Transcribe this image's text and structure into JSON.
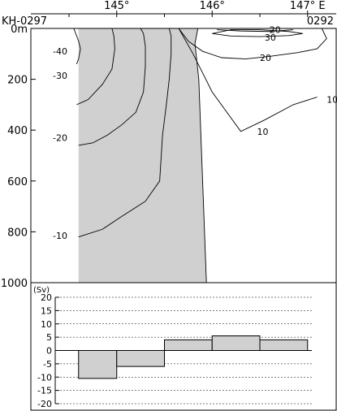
{
  "chart_data": [
    {
      "type": "contour",
      "section_start": "KH-0297",
      "section_end": "0292",
      "x_unit": "E",
      "x_ticks": [
        {
          "value": 145,
          "label": "145°"
        },
        {
          "value": 146,
          "label": "146°"
        },
        {
          "value": 147,
          "label": "147° E"
        }
      ],
      "xlim": [
        144.1,
        147.3
      ],
      "y_ticks": [
        {
          "value": 0,
          "label": "0m"
        },
        {
          "value": 200,
          "label": "200"
        },
        {
          "value": 400,
          "label": "400"
        },
        {
          "value": 600,
          "label": "600"
        },
        {
          "value": 800,
          "label": "800"
        },
        {
          "value": 1000,
          "label": "1000"
        }
      ],
      "ylim": [
        0,
        1000
      ],
      "negative_region_shaded": true,
      "contours": [
        {
          "level": -40,
          "label": "-40",
          "points": [
            [
              144.55,
              0
            ],
            [
              144.6,
              50
            ],
            [
              144.62,
              80
            ],
            [
              144.6,
              120
            ],
            [
              144.58,
              140
            ]
          ]
        },
        {
          "level": -30,
          "label": "-30",
          "points": [
            [
              144.95,
              0
            ],
            [
              144.97,
              30
            ],
            [
              144.98,
              80
            ],
            [
              144.95,
              160
            ],
            [
              144.85,
              220
            ],
            [
              144.7,
              280
            ],
            [
              144.58,
              300
            ]
          ]
        },
        {
          "level": -20,
          "label": "-20",
          "points": [
            [
              145.25,
              0
            ],
            [
              145.28,
              20
            ],
            [
              145.3,
              70
            ],
            [
              145.3,
              150
            ],
            [
              145.28,
              250
            ],
            [
              145.2,
              330
            ],
            [
              145.05,
              380
            ],
            [
              144.9,
              420
            ],
            [
              144.75,
              450
            ],
            [
              144.6,
              460
            ]
          ]
        },
        {
          "level": -10,
          "label": "-10",
          "points": [
            [
              145.55,
              0
            ],
            [
              145.57,
              30
            ],
            [
              145.57,
              100
            ],
            [
              145.55,
              200
            ],
            [
              145.52,
              300
            ],
            [
              145.48,
              420
            ],
            [
              145.45,
              600
            ],
            [
              145.3,
              680
            ],
            [
              145.05,
              740
            ],
            [
              144.85,
              790
            ],
            [
              144.6,
              820
            ]
          ]
        },
        {
          "level": 0,
          "label": "",
          "points": [
            [
              145.85,
              0
            ],
            [
              145.82,
              60
            ],
            [
              145.86,
              200
            ],
            [
              145.88,
              400
            ],
            [
              145.9,
              600
            ],
            [
              145.92,
              800
            ],
            [
              145.94,
              1000
            ]
          ]
        },
        {
          "level": 20,
          "label": "20",
          "points": [
            [
              145.65,
              0
            ],
            [
              145.75,
              50
            ],
            [
              145.9,
              90
            ],
            [
              146.1,
              115
            ],
            [
              146.35,
              120
            ],
            [
              146.6,
              110
            ],
            [
              146.9,
              95
            ],
            [
              147.1,
              80
            ],
            [
              147.2,
              40
            ],
            [
              147.15,
              0
            ]
          ]
        },
        {
          "level": 20,
          "label": "20",
          "points": [
            [
              146.0,
              20
            ],
            [
              146.2,
              5
            ],
            [
              146.5,
              5
            ],
            [
              146.8,
              12
            ],
            [
              146.95,
              20
            ],
            [
              146.8,
              28
            ],
            [
              146.5,
              32
            ],
            [
              146.2,
              30
            ],
            [
              146.0,
              20
            ]
          ]
        },
        {
          "level": 30,
          "label": "30",
          "points": [
            [
              146.05,
              5
            ],
            [
              146.3,
              10
            ],
            [
              146.6,
              12
            ],
            [
              146.85,
              5
            ]
          ]
        },
        {
          "level": 10,
          "label": "10",
          "points": [
            [
              145.65,
              0
            ],
            [
              145.8,
              100
            ],
            [
              146.0,
              250
            ],
            [
              146.3,
              405
            ],
            [
              146.55,
              360
            ],
            [
              146.85,
              300
            ],
            [
              147.1,
              270
            ]
          ]
        }
      ],
      "contour_labels": [
        {
          "text": "-40",
          "x": 144.33,
          "y": 90
        },
        {
          "text": "-30",
          "x": 144.33,
          "y": 185
        },
        {
          "text": "-20",
          "x": 144.33,
          "y": 430
        },
        {
          "text": "-10",
          "x": 144.33,
          "y": 815
        },
        {
          "text": "20",
          "x": 146.6,
          "y": 5
        },
        {
          "text": "30",
          "x": 146.55,
          "y": 35
        },
        {
          "text": "20",
          "x": 146.5,
          "y": 115
        },
        {
          "text": "10",
          "x": 147.2,
          "y": 280
        },
        {
          "text": "10",
          "x": 146.47,
          "y": 405
        }
      ]
    },
    {
      "type": "bar",
      "ylabel": "(Sv)",
      "ylim": [
        -20,
        20
      ],
      "y_ticks": [
        20,
        15,
        10,
        5,
        0,
        -5,
        -10,
        -15,
        -20
      ],
      "grid": true,
      "bars": [
        {
          "x0": 144.6,
          "x1": 145.0,
          "value": -10.5
        },
        {
          "x0": 145.0,
          "x1": 145.5,
          "value": -6
        },
        {
          "x0": 145.5,
          "x1": 146.0,
          "value": 4
        },
        {
          "x0": 146.0,
          "x1": 146.5,
          "value": 5.5
        },
        {
          "x0": 146.5,
          "x1": 147.0,
          "value": 4
        }
      ]
    }
  ]
}
